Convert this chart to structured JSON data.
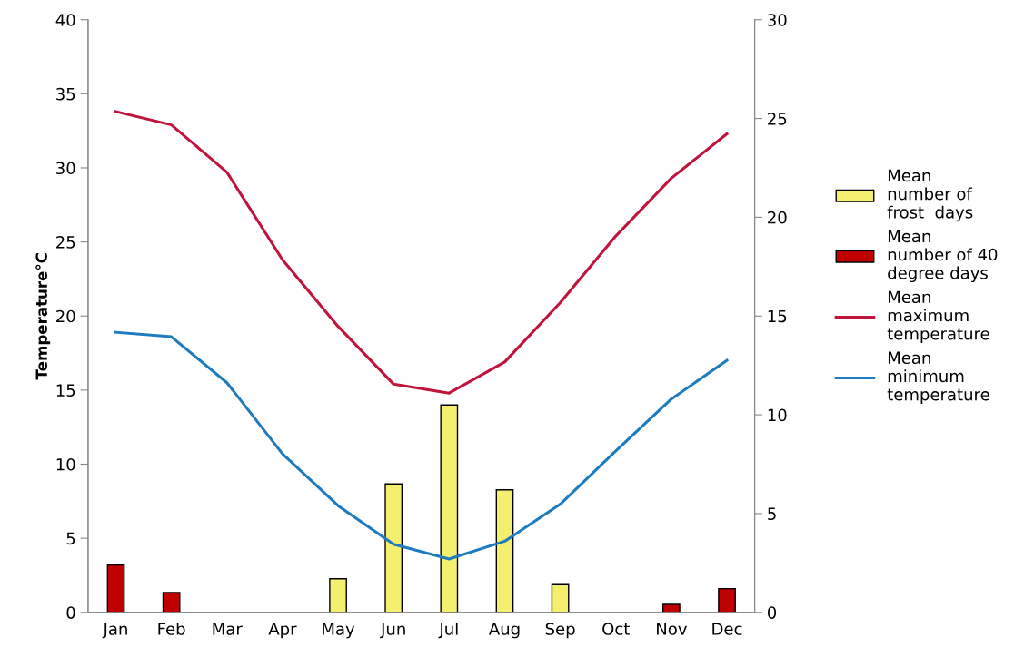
{
  "chart_data": {
    "type": "line",
    "ylabel": "Temperature°C",
    "categories": [
      "Jan",
      "Feb",
      "Mar",
      "Apr",
      "May",
      "Jun",
      "Jul",
      "Aug",
      "Sep",
      "Oct",
      "Nov",
      "Dec"
    ],
    "series": [
      {
        "name": "Mean\nnumber of\nfrost  days",
        "type": "bar",
        "axis": "y2",
        "color": "#f5ef70",
        "values": [
          null,
          null,
          0,
          0,
          1.7,
          6.5,
          10.5,
          6.2,
          1.4,
          0,
          null,
          null
        ]
      },
      {
        "name": "Mean\nnumber of 40\ndegree days",
        "type": "bar",
        "axis": "y2",
        "color": "#c00000",
        "values": [
          2.4,
          1.0,
          null,
          null,
          null,
          null,
          null,
          null,
          null,
          null,
          0.4,
          1.2
        ]
      },
      {
        "name": "Mean\nmaximum\ntemperature",
        "color": "#c0143c",
        "values": [
          33.8,
          32.9,
          29.7,
          23.8,
          19.3,
          15.4,
          14.8,
          16.9,
          20.9,
          25.4,
          29.3,
          32.3
        ]
      },
      {
        "name": "Mean\nminimum\ntemperature",
        "color": "#1f7bc0",
        "values": [
          18.9,
          18.6,
          15.5,
          10.7,
          7.2,
          4.6,
          3.6,
          4.8,
          7.3,
          10.9,
          14.4,
          17.0
        ]
      }
    ],
    "ylim": [
      0,
      40
    ],
    "yticks": [
      0,
      5,
      10,
      15,
      20,
      25,
      30,
      35,
      40
    ],
    "y2lim": [
      0,
      30
    ],
    "y2ticks": [
      0,
      5,
      10,
      15,
      20,
      25,
      30
    ],
    "legend": "right",
    "grid": false
  }
}
